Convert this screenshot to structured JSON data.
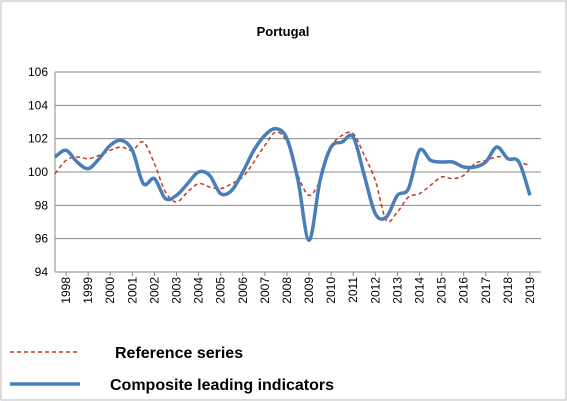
{
  "chart_data": {
    "type": "line",
    "title": "Portugal",
    "x": [
      1998,
      1998.5,
      1999,
      1999.5,
      2000,
      2000.5,
      2001,
      2001.5,
      2002,
      2002.5,
      2003,
      2003.5,
      2004,
      2004.5,
      2005,
      2005.5,
      2006,
      2006.5,
      2007,
      2007.5,
      2008,
      2008.5,
      2009,
      2009.5,
      2010,
      2010.5,
      2011,
      2011.5,
      2012,
      2012.5,
      2013,
      2013.5,
      2014,
      2014.5,
      2015,
      2015.5,
      2016,
      2016.5,
      2017,
      2017.5,
      2018,
      2018.5,
      2019,
      2019.5
    ],
    "series": [
      {
        "name": "Reference series",
        "color": "#c0392b",
        "dash": true,
        "values": [
          99.9,
          100.7,
          100.9,
          100.8,
          101.0,
          101.3,
          101.5,
          101.3,
          101.8,
          100.5,
          98.8,
          98.2,
          98.8,
          99.3,
          99.1,
          99.0,
          99.3,
          99.7,
          100.6,
          101.6,
          102.4,
          101.8,
          99.8,
          98.6,
          99.5,
          101.5,
          102.2,
          102.3,
          101.0,
          99.5,
          97.1,
          97.6,
          98.5,
          98.7,
          99.2,
          99.7,
          99.6,
          99.8,
          100.5,
          100.7,
          100.9,
          100.9,
          100.6,
          100.4
        ]
      },
      {
        "name": "Composite leading indicators",
        "color": "#4a7ebb",
        "dash": false,
        "values": [
          100.9,
          101.3,
          100.6,
          100.2,
          100.8,
          101.6,
          101.9,
          101.3,
          99.3,
          99.6,
          98.4,
          98.6,
          99.3,
          100.0,
          99.8,
          98.7,
          98.9,
          100.0,
          101.3,
          102.2,
          102.6,
          102.0,
          99.5,
          95.9,
          99.5,
          101.5,
          101.8,
          102.1,
          99.8,
          97.5,
          97.3,
          98.6,
          99.0,
          101.3,
          100.7,
          100.6,
          100.6,
          100.3,
          100.3,
          100.6,
          101.5,
          100.8,
          100.6,
          98.6
        ]
      }
    ],
    "xlim": [
      1998,
      2020
    ],
    "xticks": [
      {
        "value": 1998.5,
        "label": "1998"
      },
      {
        "value": 1999.5,
        "label": "1999"
      },
      {
        "value": 2000.5,
        "label": "2000"
      },
      {
        "value": 2001.5,
        "label": "2001"
      },
      {
        "value": 2002.5,
        "label": "2002"
      },
      {
        "value": 2003.5,
        "label": "2003"
      },
      {
        "value": 2004.5,
        "label": "2004"
      },
      {
        "value": 2005.5,
        "label": "2005"
      },
      {
        "value": 2006.5,
        "label": "2006"
      },
      {
        "value": 2007.5,
        "label": "2007"
      },
      {
        "value": 2008.5,
        "label": "2008"
      },
      {
        "value": 2009.5,
        "label": "2009"
      },
      {
        "value": 2010.5,
        "label": "2010"
      },
      {
        "value": 2011.5,
        "label": "2011"
      },
      {
        "value": 2012.5,
        "label": "2012"
      },
      {
        "value": 2013.5,
        "label": "2013"
      },
      {
        "value": 2014.5,
        "label": "2014"
      },
      {
        "value": 2015.5,
        "label": "2015"
      },
      {
        "value": 2016.5,
        "label": "2016"
      },
      {
        "value": 2017.5,
        "label": "2017"
      },
      {
        "value": 2018.5,
        "label": "2018"
      },
      {
        "value": 2019.5,
        "label": "2019"
      }
    ],
    "ylim": [
      94,
      106
    ],
    "yticks": [
      94,
      96,
      98,
      100,
      102,
      104,
      106
    ],
    "grid": true
  }
}
